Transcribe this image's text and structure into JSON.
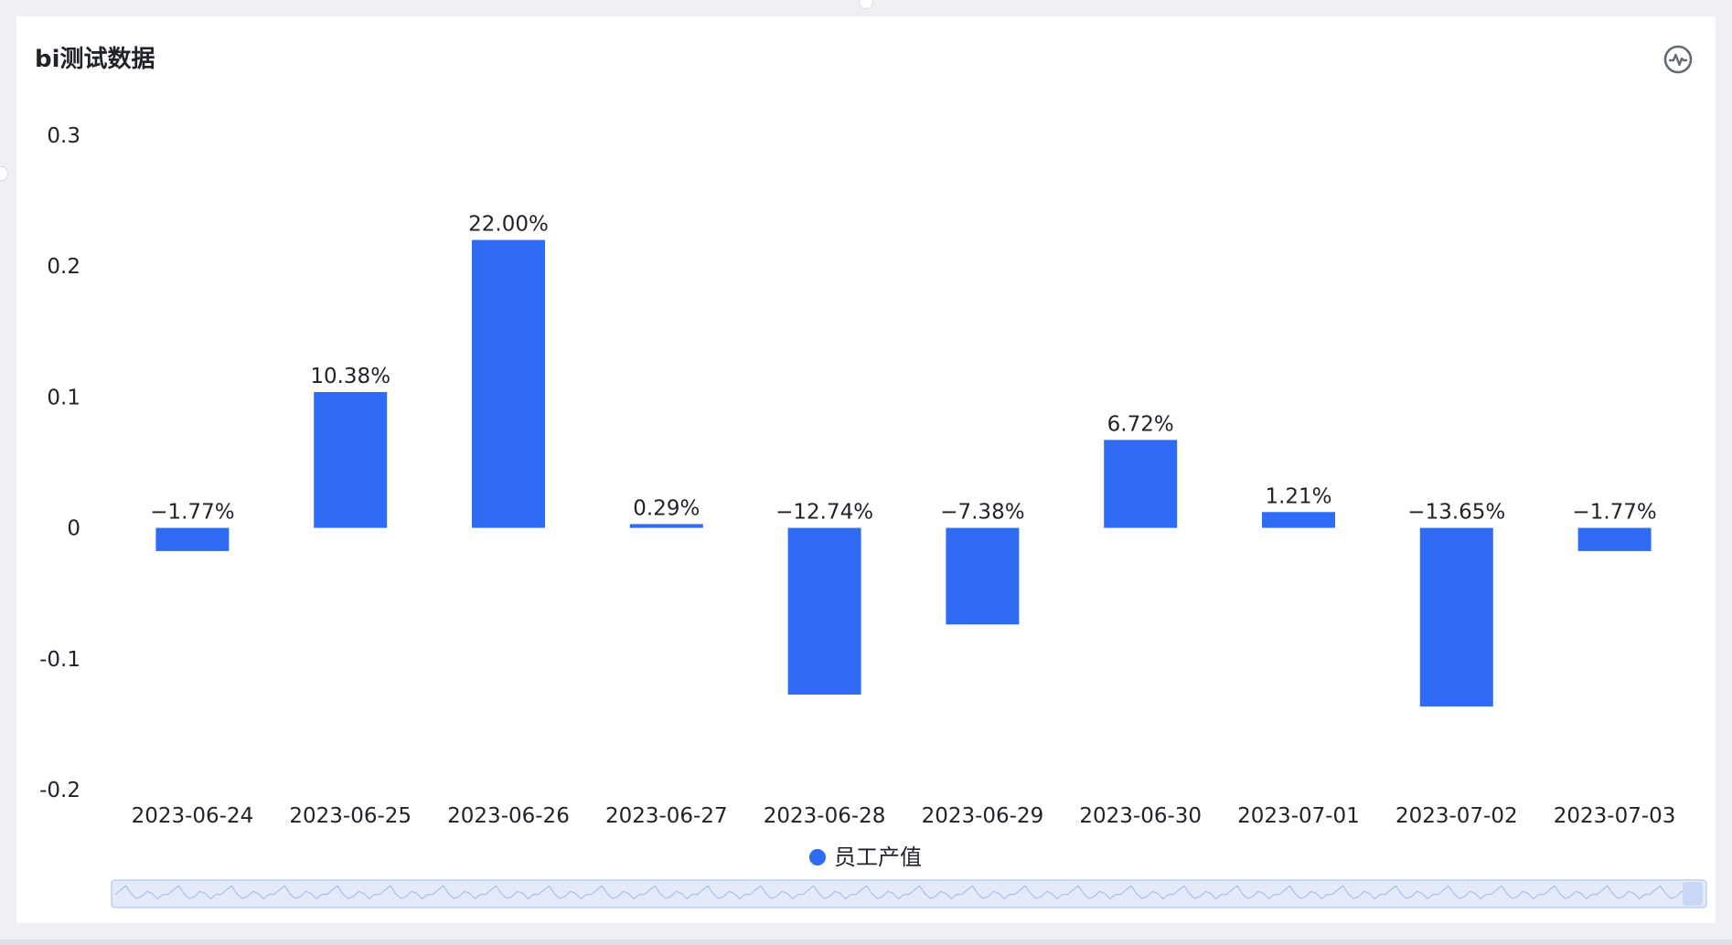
{
  "header": {
    "title": "bi测试数据",
    "action_icon": "activity-chart-icon"
  },
  "colors": {
    "bar": "#2f6bf5",
    "label": "#1f2329",
    "slider_fill": "#e3ebfb",
    "slider_border": "#bfcfef"
  },
  "chart_data": {
    "type": "bar",
    "categories": [
      "2023-06-24",
      "2023-06-25",
      "2023-06-26",
      "2023-06-27",
      "2023-06-28",
      "2023-06-29",
      "2023-06-30",
      "2023-07-01",
      "2023-07-02",
      "2023-07-03"
    ],
    "series": [
      {
        "name": "员工产值",
        "values": [
          -0.0177,
          0.1038,
          0.22,
          0.0029,
          -0.1274,
          -0.0738,
          0.0672,
          0.0121,
          -0.1365,
          -0.0177
        ],
        "labels": [
          "−1.77%",
          "10.38%",
          "22.00%",
          "0.29%",
          "−12.74%",
          "−7.38%",
          "6.72%",
          "1.21%",
          "−13.65%",
          "−1.77%"
        ]
      }
    ],
    "yticks": [
      "0.3",
      "0.2",
      "0.1",
      "0",
      "-0.1",
      "-0.2"
    ],
    "ylim": [
      -0.2,
      0.3
    ],
    "grid": false,
    "legend_position": "bottom-center",
    "data_zoom": "bottom slider, full range"
  }
}
